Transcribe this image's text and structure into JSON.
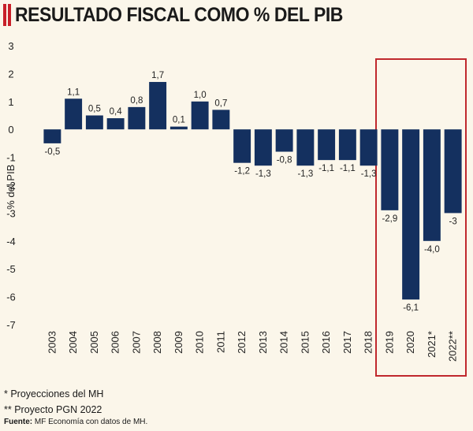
{
  "title": "RESULTADO FISCAL COMO % DEL PIB",
  "colors": {
    "accent": "#c8202a",
    "bar": "#14305f",
    "highlight_box": "#c0282d",
    "background": "#fbf6ea"
  },
  "chart_data": {
    "type": "bar",
    "title": "RESULTADO FISCAL COMO % DEL PIB",
    "ylabel": "% del PIB",
    "xlabel": "",
    "ylim": [
      -7,
      3
    ],
    "yticks": [
      3,
      2,
      1,
      0,
      -1,
      -2,
      -3,
      -4,
      -5,
      -6,
      -7
    ],
    "grid": false,
    "categories": [
      "2003",
      "2004",
      "2005",
      "2006",
      "2007",
      "2008",
      "2009",
      "2010",
      "2011",
      "2012",
      "2013",
      "2014",
      "2015",
      "2016",
      "2017",
      "2018",
      "2019",
      "2020",
      "2021*",
      "2022**"
    ],
    "values": [
      -0.5,
      1.1,
      0.5,
      0.4,
      0.8,
      1.7,
      0.1,
      1.0,
      0.7,
      -1.2,
      -1.3,
      -0.8,
      -1.3,
      -1.1,
      -1.1,
      -1.3,
      -2.9,
      -6.1,
      -4.0,
      -3.0
    ],
    "labels": [
      "-0,5",
      "1,1",
      "0,5",
      "0,4",
      "0,8",
      "1,7",
      "0,1",
      "1,0",
      "0,7",
      "-1,2",
      "-1,3",
      "-0,8",
      "-1,3",
      "-1,1",
      "-1,1",
      "-1,3",
      "-2,9",
      "-6,1",
      "-4,0",
      "-3"
    ],
    "highlight_categories": [
      "2019",
      "2020",
      "2021*",
      "2022**"
    ]
  },
  "notes": {
    "projections": "* Proyecciones del MH",
    "pgn": "** Proyecto PGN 2022",
    "source_label": "Fuente:",
    "source_text": " MF Economía con datos de MH."
  }
}
